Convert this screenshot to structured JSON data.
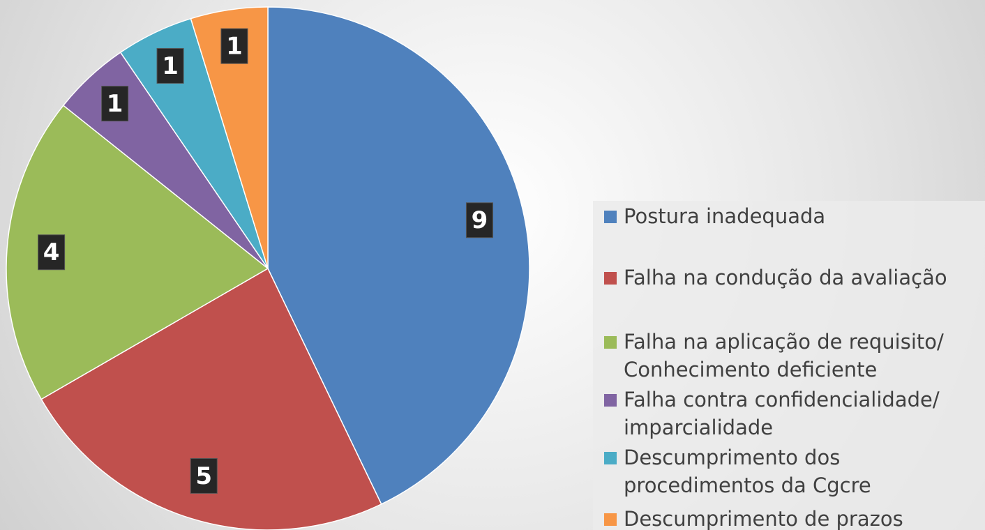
{
  "chart_data": {
    "type": "pie",
    "categories": [
      "Postura inadequada",
      "Falha na condução da avaliação",
      "Falha na aplicação de requisito/ Conhecimento deficiente",
      "Falha contra confidencialidade/ imparcialidade",
      "Descumprimento dos procedimentos da Cgcre",
      "Descumprimento de prazos"
    ],
    "values": [
      9,
      5,
      4,
      1,
      1,
      1
    ],
    "colors": [
      "#4f81bd",
      "#c0504d",
      "#9bbb59",
      "#8064a2",
      "#4bacc6",
      "#f79646"
    ],
    "legend": "right"
  }
}
